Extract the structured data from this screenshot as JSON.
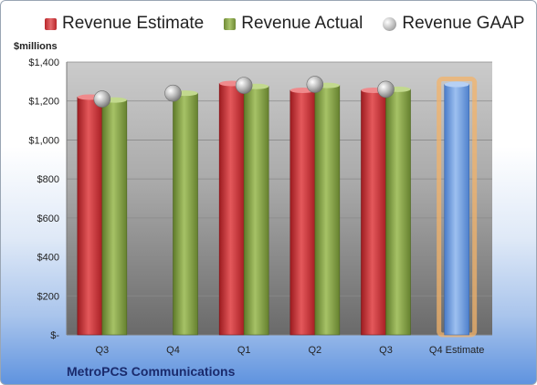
{
  "legend": {
    "estimate": "Revenue Estimate",
    "actual": "Revenue Actual",
    "gaap": "Revenue GAAP"
  },
  "unit_label": "$millions",
  "company": "MetroPCS Communications",
  "colors": {
    "estimate": "#c0282c",
    "actual": "#8aa64d",
    "gaap": "#b0b0b0",
    "forecast": "#6b9be0",
    "forecast_glow": "#f3b36a",
    "plot_top": "#c9c9c9",
    "plot_bottom": "#6e6e6e"
  },
  "chart_data": {
    "type": "bar",
    "title": "",
    "xlabel": "",
    "ylabel": "$millions",
    "ylim": [
      0,
      1400
    ],
    "yticks": [
      0,
      200,
      400,
      600,
      800,
      1000,
      1200,
      1400
    ],
    "ytick_labels": [
      "$-",
      "$200",
      "$400",
      "$600",
      "$800",
      "$1,000",
      "$1,200",
      "$1,400"
    ],
    "categories": [
      "Q3",
      "Q4",
      "Q1",
      "Q2",
      "Q3",
      "Q4 Estimate"
    ],
    "legend_position": "top",
    "grid": true,
    "series": [
      {
        "name": "Revenue Estimate",
        "kind": "bar",
        "values": [
          1220,
          null,
          1290,
          1255,
          1255,
          1285
        ]
      },
      {
        "name": "Revenue Actual",
        "kind": "bar",
        "values": [
          1205,
          1240,
          1275,
          1280,
          1260,
          null
        ]
      },
      {
        "name": "Revenue GAAP",
        "kind": "marker",
        "values": [
          1210,
          1240,
          1280,
          1285,
          1260,
          null
        ]
      }
    ]
  }
}
